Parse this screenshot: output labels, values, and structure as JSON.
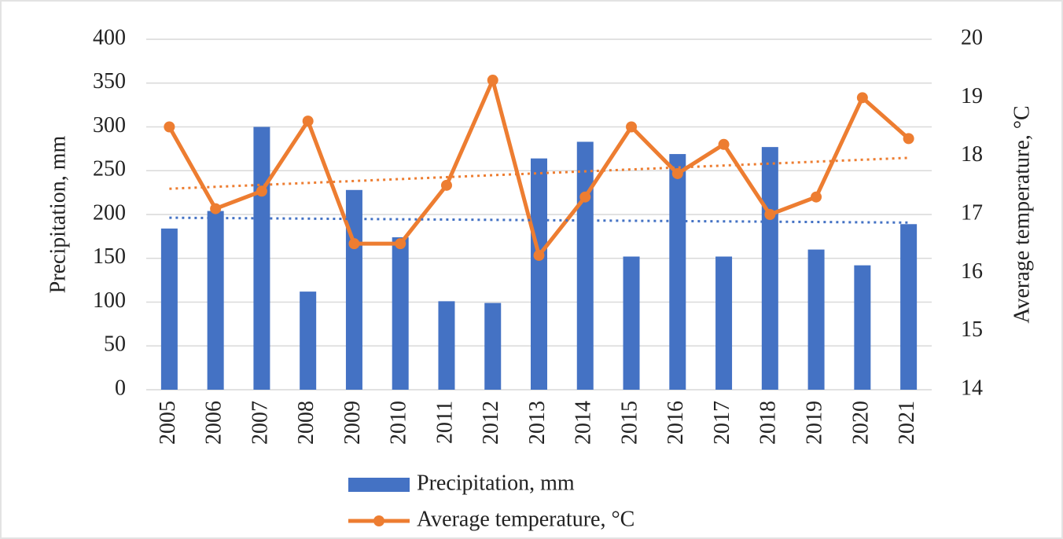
{
  "chart_data": {
    "type": "bar",
    "categories": [
      "2005",
      "2006",
      "2007",
      "2008",
      "2009",
      "2010",
      "2011",
      "2012",
      "2013",
      "2014",
      "2015",
      "2016",
      "2017",
      "2018",
      "2019",
      "2020",
      "2021"
    ],
    "series": [
      {
        "name": "Precipitation, mm",
        "type": "bar",
        "color": "#4472c4",
        "trendline": true,
        "values": [
          184,
          204,
          300,
          112,
          228,
          174,
          101,
          99,
          264,
          283,
          152,
          269,
          152,
          277,
          160,
          142,
          189
        ]
      },
      {
        "name": "Average temperature, °C",
        "type": "line",
        "axis": "y2",
        "color": "#ed7d31",
        "trendline": true,
        "values": [
          18.5,
          17.1,
          17.4,
          18.6,
          16.5,
          16.5,
          17.5,
          19.3,
          16.3,
          17.3,
          18.5,
          17.7,
          18.2,
          17.0,
          17.3,
          19.0,
          18.3
        ]
      }
    ],
    "y_label": "Precipitation, mm",
    "y2_label": "Average temperature, °C",
    "ylim": [
      0,
      400
    ],
    "yticks": [
      0,
      50,
      100,
      150,
      200,
      250,
      300,
      350,
      400
    ],
    "y2lim": [
      14,
      20
    ],
    "y2ticks": [
      14,
      15,
      16,
      17,
      18,
      19,
      20
    ],
    "grid": true,
    "legend": "bottom"
  }
}
